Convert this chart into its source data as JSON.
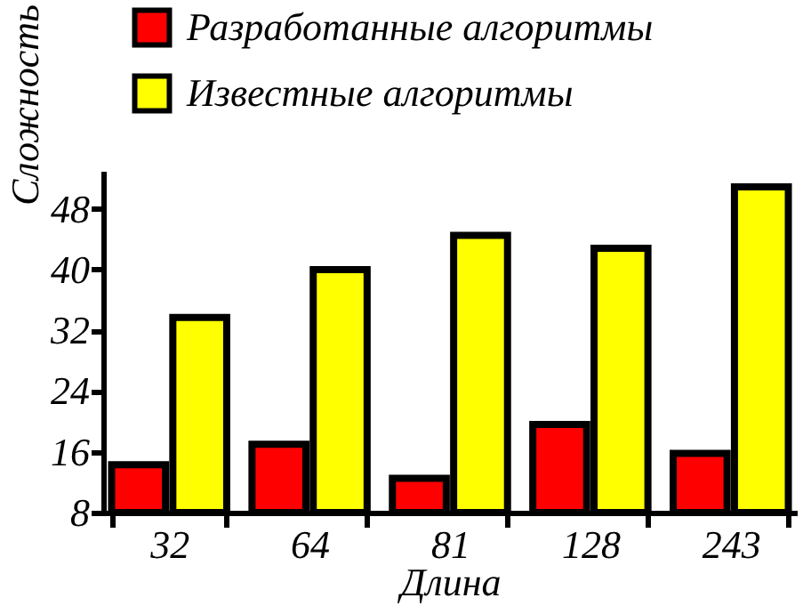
{
  "chart_data": {
    "type": "bar",
    "xlabel": "Длина",
    "ylabel": "Сложность",
    "categories": [
      "32",
      "64",
      "81",
      "128",
      "243"
    ],
    "series": [
      {
        "name": "Разработанные алгоритмы",
        "color": "#ff0000",
        "values": [
          14.3,
          17,
          12.5,
          19.6,
          15.8
        ]
      },
      {
        "name": "Известные алгоритмы",
        "color": "#ffff00",
        "values": [
          33.7,
          40,
          44.5,
          42.8,
          50.9
        ]
      }
    ],
    "ylim": [
      8,
      53
    ],
    "yticks": [
      8,
      16,
      24,
      32,
      40,
      48
    ],
    "grid": false,
    "legend": "top left"
  }
}
